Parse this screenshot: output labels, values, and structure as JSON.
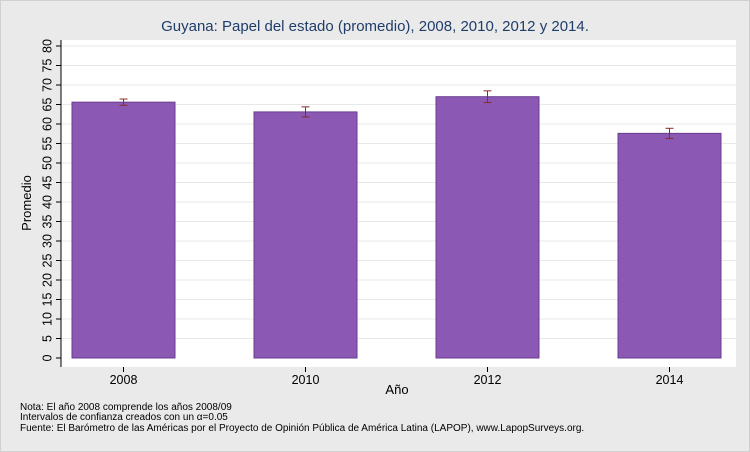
{
  "chart_data": {
    "type": "bar",
    "title": "Guyana: Papel del estado (promedio), 2008, 2010, 2012 y 2014.",
    "xlabel": "Año",
    "ylabel": "Promedio",
    "categories": [
      "2008",
      "2010",
      "2012",
      "2014"
    ],
    "values": [
      65.6,
      63.1,
      67.0,
      57.6
    ],
    "ci_low": [
      64.8,
      61.8,
      65.5,
      56.3
    ],
    "ci_high": [
      66.4,
      64.4,
      68.5,
      58.9
    ],
    "ylim": [
      0,
      80
    ],
    "yticks": [
      0,
      5,
      10,
      15,
      20,
      25,
      30,
      35,
      40,
      45,
      50,
      55,
      60,
      65,
      70,
      75,
      80
    ],
    "grid": true,
    "colors": {
      "bar": "#8b59b3",
      "bar_edge": "#6a3d8f",
      "error_bar": "#8a2a2a",
      "plot_bg": "#ffffff",
      "page_bg": "#eaeaea",
      "grid": "#e8e8e8",
      "title": "#1f3d6b"
    }
  },
  "notes": [
    "Nota: El año 2008 comprende los años 2008/09",
    "Intervalos de confianza creados con un α=0.05",
    "Fuente: El Barómetro de las Américas por el Proyecto de Opinión Pública de América Latina (LAPOP), www.LapopSurveys.org."
  ]
}
